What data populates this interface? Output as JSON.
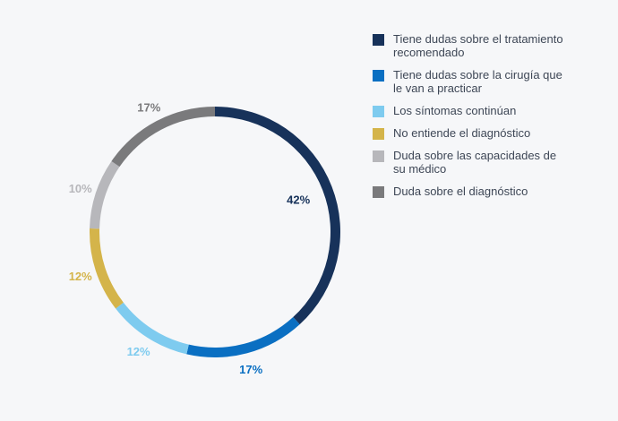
{
  "chart_data": {
    "type": "pie",
    "donut": true,
    "legend_position": "right",
    "series": [
      {
        "name": "Tiene dudas sobre el tratamiento\nrecomendado",
        "value": 42,
        "label": "42%",
        "color": "#17325a"
      },
      {
        "name": "Tiene dudas sobre la cirugía que\nle van a practicar",
        "value": 17,
        "label": "17%",
        "color": "#0a6fc2"
      },
      {
        "name": "Los síntomas continúan",
        "value": 12,
        "label": "12%",
        "color": "#7ecbef"
      },
      {
        "name": "No entiende el diagnóstico",
        "value": 12,
        "label": "12%",
        "color": "#d4b44a"
      },
      {
        "name": "Duda sobre las capacidades de\nsu médico",
        "value": 10,
        "label": "10%",
        "color": "#b7b7bb"
      },
      {
        "name": "Duda sobre el diagnóstico",
        "value": 17,
        "label": "17%",
        "color": "#7a7a7c"
      }
    ]
  }
}
